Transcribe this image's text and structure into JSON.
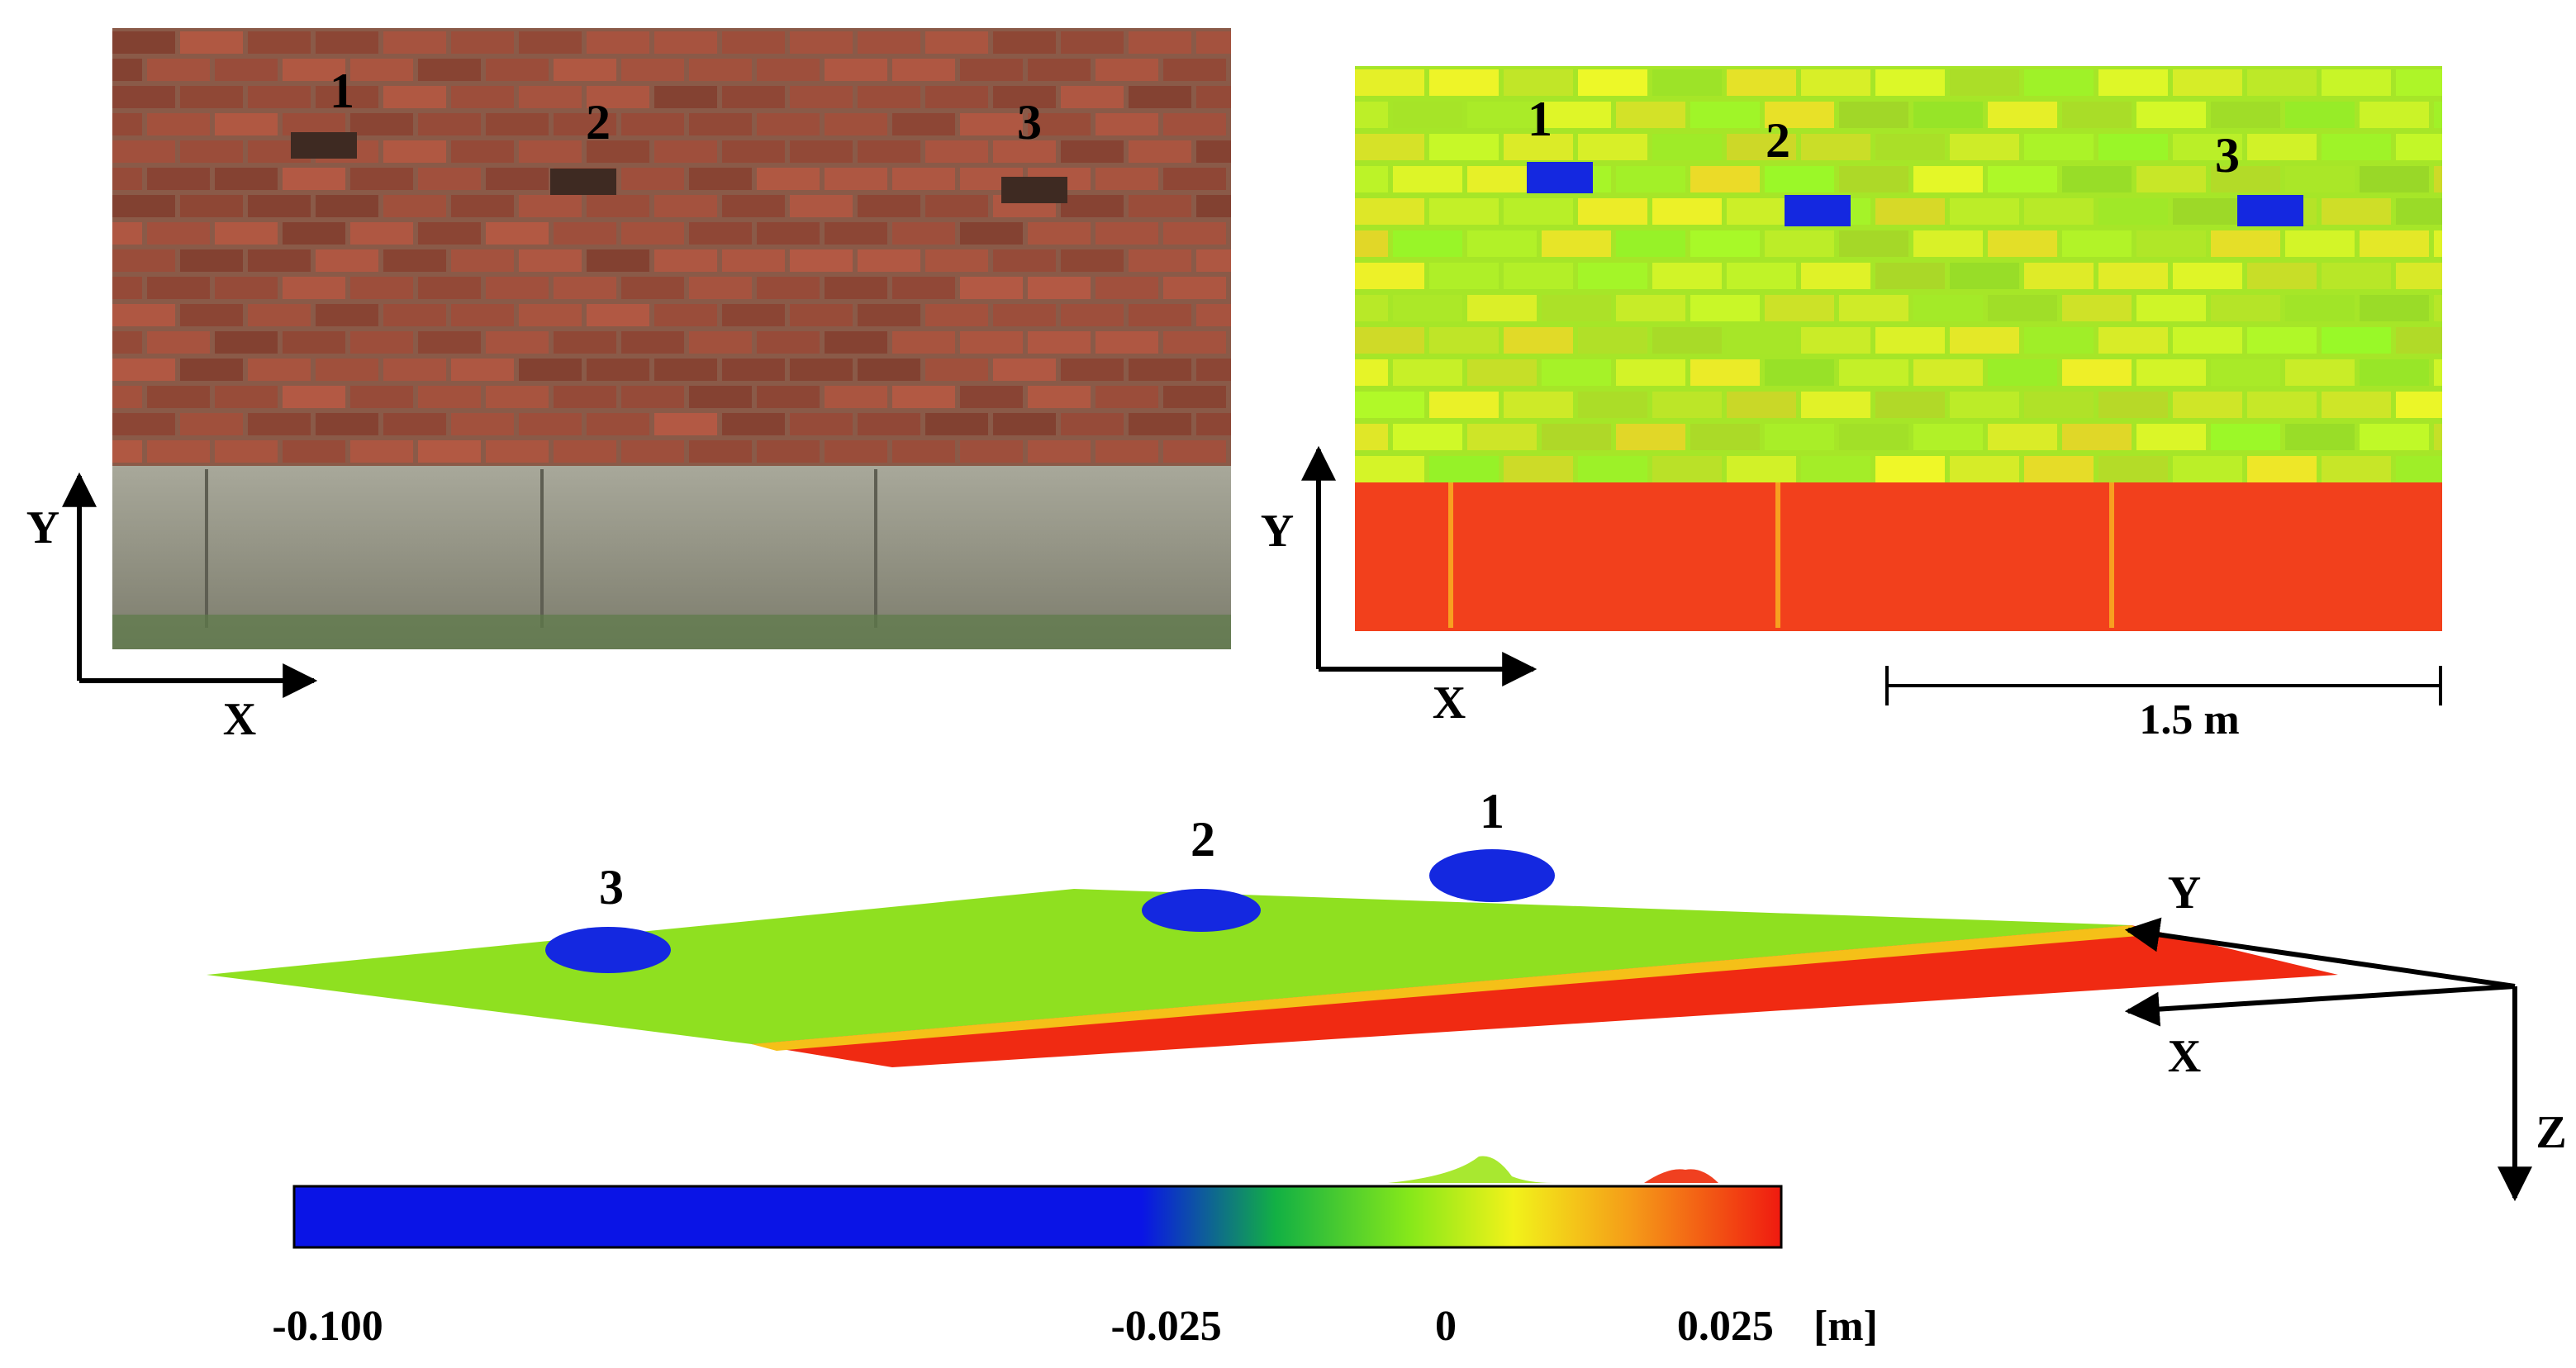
{
  "photo": {
    "labels": [
      "1",
      "2",
      "3"
    ],
    "x_axis": "X",
    "y_axis": "Y"
  },
  "deviation_map": {
    "labels": [
      "1",
      "2",
      "3"
    ],
    "x_axis": "X",
    "y_axis": "Y",
    "scale_bar": "1.5 m"
  },
  "view_3d": {
    "labels": [
      "1",
      "2",
      "3"
    ],
    "y_axis": "Y",
    "x_axis": "X",
    "z_axis": "Z"
  },
  "colorbar": {
    "lim": [
      -0.103,
      0.03
    ],
    "ticks": [
      {
        "value": -0.1,
        "label": "-0.100"
      },
      {
        "value": -0.025,
        "label": "-0.025"
      },
      0,
      0.025
    ],
    "unit": "[m]"
  }
}
